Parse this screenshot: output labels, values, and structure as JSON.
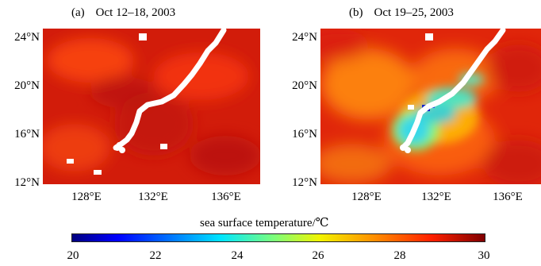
{
  "panels": [
    {
      "label": "(a)",
      "date": "Oct 12–18, 2003"
    },
    {
      "label": "(b)",
      "date": "Oct 19–25, 2003"
    }
  ],
  "y_ticks": [
    "24°N",
    "20°N",
    "16°N",
    "12°N"
  ],
  "x_ticks": [
    "128°E",
    "132°E",
    "136°E"
  ],
  "colorbar": {
    "title": "sea surface temperature/℃",
    "ticks": [
      "20",
      "22",
      "24",
      "26",
      "28",
      "30"
    ],
    "range": [
      20,
      30
    ]
  },
  "colors": {
    "warm": "#d81e0a",
    "mid": "#ff6a00",
    "cool": "#38e0d8",
    "cold": "#1020c8",
    "track": "#ffffff"
  }
}
